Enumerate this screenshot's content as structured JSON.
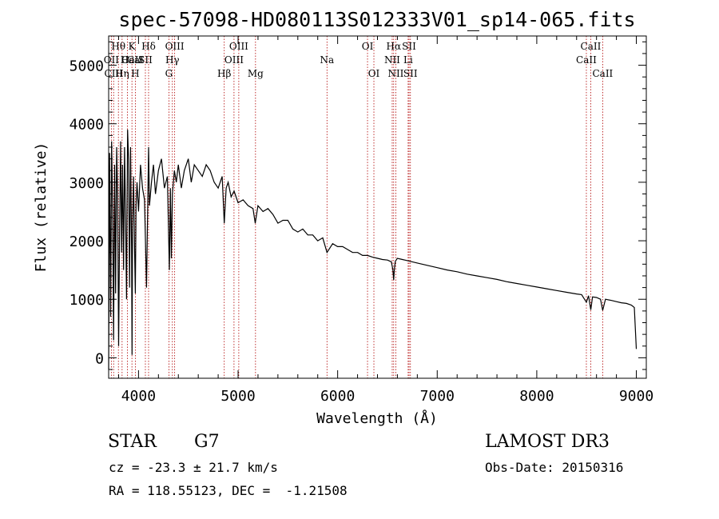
{
  "chart_data": {
    "type": "line",
    "title": "spec-57098-HD080113S012333V01_sp14-065.fits",
    "xlabel": "Wavelength (Å)",
    "ylabel": "Flux (relative)",
    "xlim": [
      3700,
      9100
    ],
    "ylim": [
      -350,
      5500
    ],
    "xticks": [
      4000,
      5000,
      6000,
      7000,
      8000,
      9000
    ],
    "yticks": [
      0,
      1000,
      2000,
      3000,
      4000,
      5000
    ],
    "series": [
      {
        "name": "spectrum",
        "x": [
          3700,
          3710,
          3720,
          3730,
          3740,
          3750,
          3760,
          3770,
          3780,
          3790,
          3800,
          3810,
          3820,
          3830,
          3840,
          3850,
          3860,
          3870,
          3880,
          3890,
          3900,
          3910,
          3920,
          3930,
          3935,
          3940,
          3950,
          3960,
          3968,
          3975,
          3985,
          4000,
          4020,
          4040,
          4060,
          4080,
          4101,
          4110,
          4130,
          4150,
          4170,
          4200,
          4230,
          4260,
          4290,
          4310,
          4320,
          4330,
          4340,
          4360,
          4380,
          4400,
          4430,
          4460,
          4500,
          4530,
          4560,
          4600,
          4640,
          4680,
          4720,
          4760,
          4800,
          4840,
          4861,
          4880,
          4900,
          4930,
          4960,
          5000,
          5050,
          5100,
          5150,
          5172,
          5200,
          5250,
          5300,
          5350,
          5400,
          5450,
          5500,
          5550,
          5600,
          5650,
          5700,
          5750,
          5800,
          5850,
          5893,
          5950,
          6000,
          6050,
          6100,
          6150,
          6200,
          6250,
          6300,
          6350,
          6400,
          6450,
          6500,
          6540,
          6555,
          6563,
          6570,
          6580,
          6600,
          6650,
          6700,
          6750,
          6800,
          6900,
          7000,
          7100,
          7200,
          7300,
          7400,
          7500,
          7600,
          7700,
          7800,
          7900,
          8000,
          8100,
          8200,
          8300,
          8400,
          8450,
          8498,
          8520,
          8542,
          8560,
          8600,
          8640,
          8662,
          8690,
          8750,
          8800,
          8850,
          8900,
          8950,
          8980,
          9000
        ],
        "values": [
          -200,
          3500,
          700,
          3700,
          2500,
          300,
          3300,
          1100,
          3600,
          2800,
          200,
          2200,
          3700,
          1800,
          3300,
          1500,
          3600,
          2400,
          1000,
          3900,
          3400,
          1200,
          3600,
          1900,
          50,
          2200,
          3100,
          1900,
          1100,
          2600,
          3000,
          2500,
          3300,
          2900,
          2700,
          1200,
          3600,
          2600,
          3000,
          3300,
          2800,
          3200,
          3400,
          2900,
          3100,
          1500,
          2900,
          1700,
          2800,
          3200,
          3000,
          3300,
          2900,
          3200,
          3400,
          3000,
          3300,
          3200,
          3100,
          3300,
          3200,
          3000,
          2900,
          3100,
          2300,
          2900,
          3000,
          2750,
          2850,
          2650,
          2700,
          2600,
          2550,
          2300,
          2600,
          2500,
          2550,
          2450,
          2300,
          2350,
          2350,
          2200,
          2150,
          2200,
          2100,
          2100,
          2000,
          2050,
          1800,
          1950,
          1900,
          1900,
          1850,
          1800,
          1800,
          1750,
          1750,
          1720,
          1700,
          1680,
          1670,
          1640,
          1500,
          1330,
          1520,
          1650,
          1700,
          1680,
          1660,
          1640,
          1620,
          1580,
          1540,
          1500,
          1470,
          1430,
          1400,
          1370,
          1340,
          1300,
          1270,
          1240,
          1210,
          1180,
          1150,
          1120,
          1090,
          1080,
          950,
          1060,
          820,
          1040,
          1030,
          1000,
          810,
          1000,
          980,
          960,
          940,
          930,
          900,
          860,
          150
        ]
      }
    ],
    "lines": [
      {
        "name": "Hθ",
        "wl": 3798,
        "row": 1
      },
      {
        "name": "CaII",
        "wl": 3934,
        "row": 2
      },
      {
        "name": "K",
        "wl": 3934,
        "row": 1
      },
      {
        "name": "CaⅠ",
        "wl": 3968,
        "row": 2
      },
      {
        "name": "Hδ",
        "wl": 4101,
        "row": 1
      },
      {
        "name": "OII",
        "wl": 3727,
        "row": 2
      },
      {
        "name": "He",
        "wl": 3889,
        "row": 2
      },
      {
        "name": "SII",
        "wl": 4069,
        "row": 2
      },
      {
        "name": "CIII",
        "wl": 3750,
        "row": 3
      },
      {
        "name": "Hη",
        "wl": 3835,
        "row": 3
      },
      {
        "name": "H",
        "wl": 3968,
        "row": 3
      },
      {
        "name": "OIII",
        "wl": 4363,
        "row": 1
      },
      {
        "name": "Hγ",
        "wl": 4340,
        "row": 2
      },
      {
        "name": "G",
        "wl": 4305,
        "row": 3
      },
      {
        "name": "Hβ",
        "wl": 4861,
        "row": 3
      },
      {
        "name": "OIII",
        "wl": 5007,
        "row": 1
      },
      {
        "name": "OIII",
        "wl": 4959,
        "row": 2
      },
      {
        "name": "Mg",
        "wl": 5175,
        "row": 3
      },
      {
        "name": "Na",
        "wl": 5893,
        "row": 2
      },
      {
        "name": "OI",
        "wl": 6300,
        "row": 1
      },
      {
        "name": "OI",
        "wl": 6364,
        "row": 3
      },
      {
        "name": "Hα",
        "wl": 6563,
        "row": 1
      },
      {
        "name": "SII",
        "wl": 6717,
        "row": 1
      },
      {
        "name": "NII",
        "wl": 6548,
        "row": 2
      },
      {
        "name": "Li",
        "wl": 6708,
        "row": 2
      },
      {
        "name": "NII",
        "wl": 6584,
        "row": 3
      },
      {
        "name": "SII",
        "wl": 6731,
        "row": 3
      },
      {
        "name": "CaII",
        "wl": 8542,
        "row": 1
      },
      {
        "name": "CaII",
        "wl": 8498,
        "row": 2
      },
      {
        "name": "CaII",
        "wl": 8662,
        "row": 3
      }
    ],
    "line_wavelengths": [
      3727,
      3750,
      3798,
      3835,
      3889,
      3934,
      3968,
      4069,
      4101,
      4305,
      4340,
      4363,
      4861,
      4959,
      5007,
      5175,
      5893,
      6300,
      6364,
      6548,
      6563,
      6584,
      6708,
      6717,
      6731,
      8498,
      8542,
      8662
    ],
    "colors": {
      "spectrum": "#000000",
      "marker": "#b00000"
    }
  },
  "info": {
    "object": "STAR",
    "subclass": "G7",
    "survey": "LAMOST DR3",
    "cz": "cz = -23.3 ± 21.7 km/s",
    "obs_date": "Obs-Date: 20150316",
    "coords": "RA = 118.55123, DEC =  -1.21508"
  }
}
